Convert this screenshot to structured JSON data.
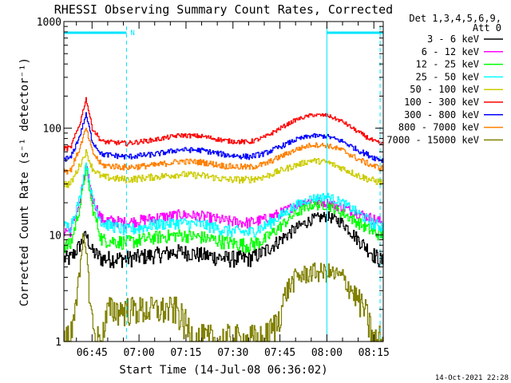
{
  "chart_data": {
    "type": "line",
    "title": "RHESSI Observing Summary Count Rates, Corrected",
    "xlabel": "Start Time (14-Jul-08 06:36:02)",
    "ylabel": "Corrected Count Rate (s⁻¹ detector⁻¹)",
    "yscale": "log",
    "ylim": [
      1,
      1000
    ],
    "xlim": [
      "06:36",
      "08:18"
    ],
    "x_ticks": [
      "06:45",
      "07:00",
      "07:15",
      "07:30",
      "07:45",
      "08:00",
      "08:15"
    ],
    "y_ticks": [
      "1",
      "10",
      "100",
      "1000"
    ],
    "legend_position": "right",
    "legend_header": [
      "Det 1,3,4,5,6,9,",
      "Att 0"
    ],
    "grid": false,
    "attenuator_bars": [
      {
        "start": "06:36",
        "end": "06:56",
        "label": "N"
      },
      {
        "start": "08:00",
        "end": "08:18",
        "label": ""
      }
    ],
    "vertical_markers": [
      {
        "time": "06:56",
        "style": "dashed"
      },
      {
        "time": "08:00",
        "style": "solid"
      },
      {
        "time": "08:17",
        "style": "dashed"
      }
    ],
    "series": [
      {
        "name": "3 - 6 keV",
        "color": "#000000",
        "points": [
          [
            "06:38",
            6
          ],
          [
            "06:41",
            8
          ],
          [
            "06:43",
            10
          ],
          [
            "06:45",
            7
          ],
          [
            "06:48",
            6
          ],
          [
            "06:56",
            6
          ],
          [
            "07:05",
            6.5
          ],
          [
            "07:13",
            7
          ],
          [
            "07:20",
            6.5
          ],
          [
            "07:28",
            6
          ],
          [
            "07:35",
            6
          ],
          [
            "07:40",
            7
          ],
          [
            "07:45",
            9
          ],
          [
            "07:50",
            11.5
          ],
          [
            "07:55",
            14
          ],
          [
            "08:00",
            15
          ],
          [
            "08:05",
            13
          ],
          [
            "08:10",
            9
          ],
          [
            "08:15",
            6.5
          ],
          [
            "08:18",
            5.5
          ]
        ]
      },
      {
        "name": "6 - 12 keV",
        "color": "#ff00ff",
        "points": [
          [
            "06:38",
            11
          ],
          [
            "06:41",
            20
          ],
          [
            "06:43",
            45
          ],
          [
            "06:45",
            22
          ],
          [
            "06:48",
            14
          ],
          [
            "06:56",
            13
          ],
          [
            "07:05",
            14.5
          ],
          [
            "07:13",
            15.5
          ],
          [
            "07:20",
            15
          ],
          [
            "07:28",
            13.5
          ],
          [
            "07:35",
            13
          ],
          [
            "07:40",
            14
          ],
          [
            "07:45",
            16
          ],
          [
            "07:50",
            19
          ],
          [
            "07:55",
            21
          ],
          [
            "08:00",
            20
          ],
          [
            "08:05",
            18
          ],
          [
            "08:10",
            16
          ],
          [
            "08:15",
            14
          ],
          [
            "08:18",
            13
          ]
        ]
      },
      {
        "name": "12 - 25 keV",
        "color": "#00ff00",
        "points": [
          [
            "06:38",
            8
          ],
          [
            "06:41",
            18
          ],
          [
            "06:43",
            42
          ],
          [
            "06:45",
            18
          ],
          [
            "06:48",
            9
          ],
          [
            "06:56",
            8.5
          ],
          [
            "07:05",
            9.5
          ],
          [
            "07:13",
            10
          ],
          [
            "07:20",
            9.5
          ],
          [
            "07:28",
            8.5
          ],
          [
            "07:35",
            8
          ],
          [
            "07:40",
            9
          ],
          [
            "07:45",
            12
          ],
          [
            "07:50",
            16
          ],
          [
            "07:55",
            19
          ],
          [
            "08:00",
            19
          ],
          [
            "08:05",
            16
          ],
          [
            "08:10",
            13
          ],
          [
            "08:15",
            10.5
          ],
          [
            "08:18",
            10
          ]
        ]
      },
      {
        "name": "25 - 50 keV",
        "color": "#00ffff",
        "points": [
          [
            "06:38",
            12
          ],
          [
            "06:41",
            22
          ],
          [
            "06:43",
            48
          ],
          [
            "06:45",
            22
          ],
          [
            "06:48",
            13
          ],
          [
            "06:56",
            11
          ],
          [
            "07:05",
            12.5
          ],
          [
            "07:13",
            13
          ],
          [
            "07:20",
            12.5
          ],
          [
            "07:28",
            11
          ],
          [
            "07:35",
            10.5
          ],
          [
            "07:40",
            12
          ],
          [
            "07:45",
            15
          ],
          [
            "07:50",
            19
          ],
          [
            "07:55",
            22
          ],
          [
            "08:00",
            23
          ],
          [
            "08:05",
            20
          ],
          [
            "08:10",
            16
          ],
          [
            "08:15",
            12.5
          ],
          [
            "08:18",
            12
          ]
        ]
      },
      {
        "name": "50 - 100 keV",
        "color": "#cccc00",
        "points": [
          [
            "06:38",
            30
          ],
          [
            "06:41",
            45
          ],
          [
            "06:43",
            60
          ],
          [
            "06:45",
            42
          ],
          [
            "06:48",
            35
          ],
          [
            "06:56",
            33
          ],
          [
            "07:05",
            35
          ],
          [
            "07:13",
            37
          ],
          [
            "07:20",
            36
          ],
          [
            "07:28",
            33
          ],
          [
            "07:35",
            33
          ],
          [
            "07:40",
            35
          ],
          [
            "07:45",
            40
          ],
          [
            "07:50",
            45
          ],
          [
            "07:55",
            50
          ],
          [
            "08:00",
            48
          ],
          [
            "08:05",
            42
          ],
          [
            "08:10",
            36
          ],
          [
            "08:15",
            32
          ],
          [
            "08:18",
            31
          ]
        ]
      },
      {
        "name": "100 - 300 keV",
        "color": "#ff0000",
        "points": [
          [
            "06:38",
            65
          ],
          [
            "06:41",
            110
          ],
          [
            "06:43",
            190
          ],
          [
            "06:45",
            100
          ],
          [
            "06:48",
            75
          ],
          [
            "06:56",
            72
          ],
          [
            "07:05",
            78
          ],
          [
            "07:13",
            86
          ],
          [
            "07:20",
            84
          ],
          [
            "07:28",
            76
          ],
          [
            "07:35",
            74
          ],
          [
            "07:40",
            82
          ],
          [
            "07:45",
            100
          ],
          [
            "07:50",
            120
          ],
          [
            "07:55",
            133
          ],
          [
            "08:00",
            132
          ],
          [
            "08:05",
            115
          ],
          [
            "08:10",
            92
          ],
          [
            "08:15",
            75
          ],
          [
            "08:18",
            70
          ]
        ]
      },
      {
        "name": "300 - 800 keV",
        "color": "#0000ff",
        "points": [
          [
            "06:38",
            52
          ],
          [
            "06:41",
            85
          ],
          [
            "06:43",
            135
          ],
          [
            "06:45",
            75
          ],
          [
            "06:48",
            57
          ],
          [
            "06:56",
            54
          ],
          [
            "07:05",
            57
          ],
          [
            "07:13",
            63
          ],
          [
            "07:20",
            62
          ],
          [
            "07:28",
            56
          ],
          [
            "07:35",
            54
          ],
          [
            "07:40",
            58
          ],
          [
            "07:45",
            67
          ],
          [
            "07:50",
            78
          ],
          [
            "07:55",
            85
          ],
          [
            "08:00",
            84
          ],
          [
            "08:05",
            75
          ],
          [
            "08:10",
            62
          ],
          [
            "08:15",
            53
          ],
          [
            "08:18",
            50
          ]
        ]
      },
      {
        "name": "800 - 7000 keV",
        "color": "#ff8000",
        "points": [
          [
            "06:38",
            40
          ],
          [
            "06:41",
            65
          ],
          [
            "06:43",
            100
          ],
          [
            "06:45",
            60
          ],
          [
            "06:48",
            45
          ],
          [
            "06:56",
            43
          ],
          [
            "07:05",
            45
          ],
          [
            "07:13",
            49
          ],
          [
            "07:20",
            48
          ],
          [
            "07:28",
            44
          ],
          [
            "07:35",
            43
          ],
          [
            "07:40",
            46
          ],
          [
            "07:45",
            54
          ],
          [
            "07:50",
            63
          ],
          [
            "07:55",
            70
          ],
          [
            "08:00",
            69
          ],
          [
            "08:05",
            62
          ],
          [
            "08:10",
            51
          ],
          [
            "08:15",
            44
          ],
          [
            "08:18",
            42
          ]
        ]
      },
      {
        "name": "7000 - 15000 keV",
        "color": "#808000",
        "points": [
          [
            "06:38",
            1
          ],
          [
            "06:39",
            2
          ],
          [
            "06:41",
            4
          ],
          [
            "06:42",
            9
          ],
          [
            "06:43",
            8
          ],
          [
            "06:44",
            3
          ],
          [
            "06:45",
            1.5
          ],
          [
            "06:46",
            1
          ],
          [
            "06:48",
            1
          ],
          [
            "06:50",
            2
          ],
          [
            "06:56",
            2
          ],
          [
            "07:05",
            2
          ],
          [
            "07:12",
            2
          ],
          [
            "07:18",
            1
          ],
          [
            "07:30",
            1
          ],
          [
            "07:40",
            1
          ],
          [
            "07:44",
            1.5
          ],
          [
            "07:47",
            3
          ],
          [
            "07:50",
            4
          ],
          [
            "07:55",
            4.5
          ],
          [
            "08:00",
            4.5
          ],
          [
            "08:05",
            4
          ],
          [
            "08:08",
            3
          ],
          [
            "08:12",
            2
          ],
          [
            "08:15",
            1
          ],
          [
            "08:18",
            1
          ]
        ]
      }
    ]
  },
  "footer": {
    "timestamp": "14-Oct-2021 22:28"
  }
}
